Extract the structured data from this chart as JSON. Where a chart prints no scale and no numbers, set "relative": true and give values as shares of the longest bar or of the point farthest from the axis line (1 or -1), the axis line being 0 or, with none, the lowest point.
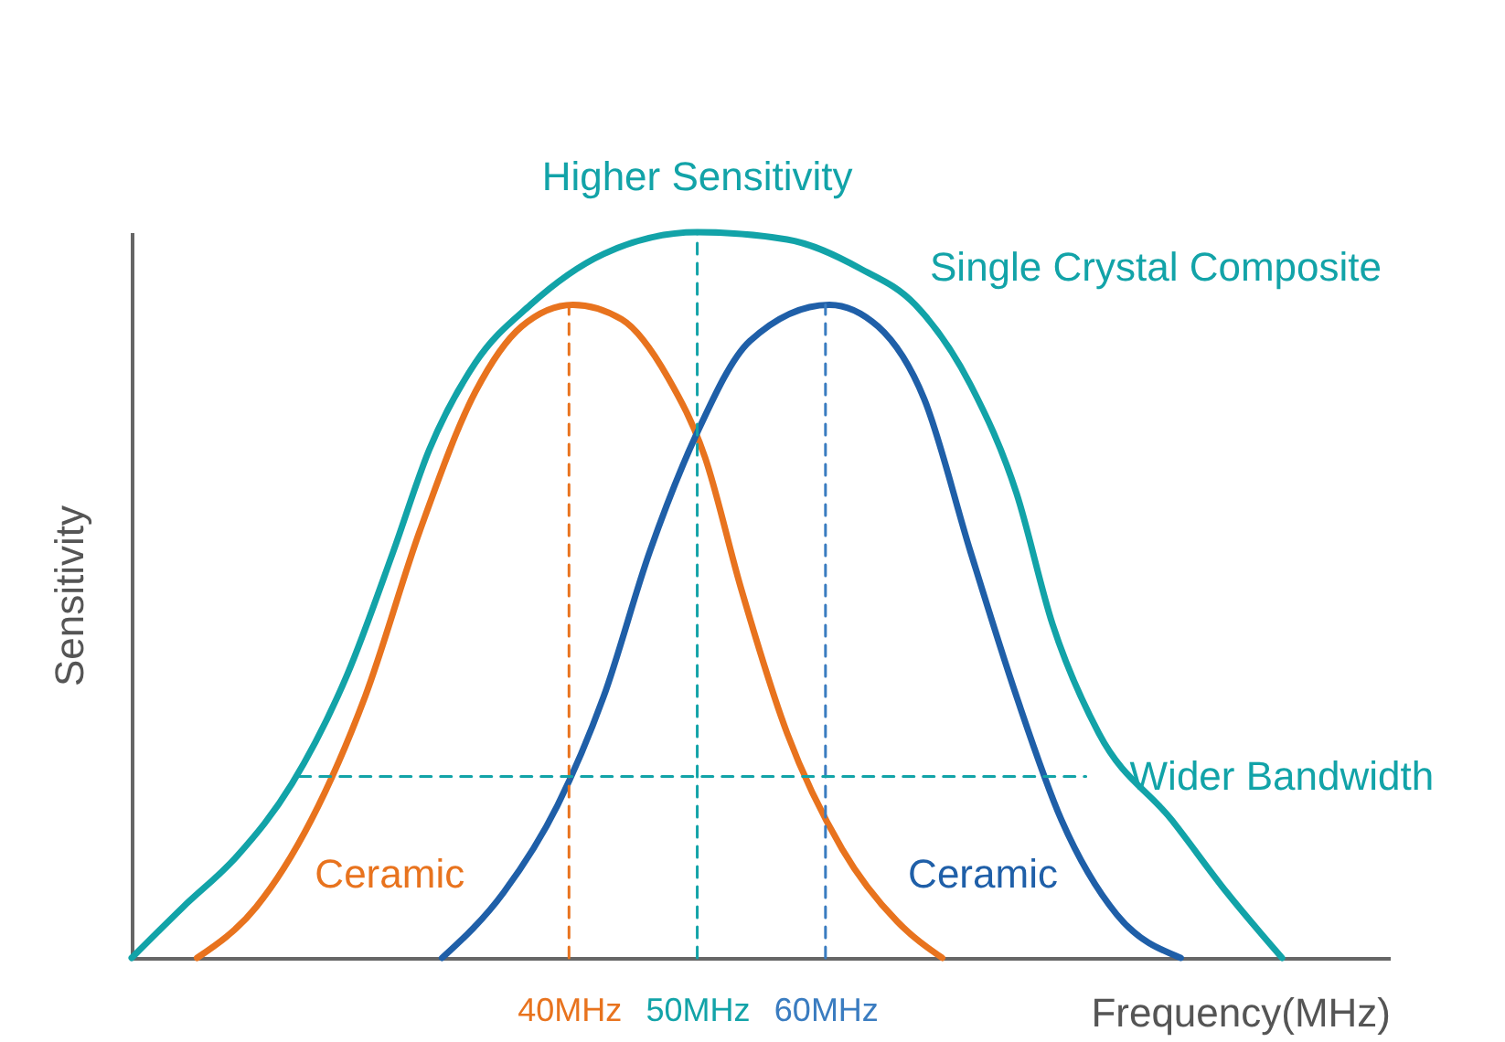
{
  "chart_data": {
    "type": "line",
    "relative": true,
    "xlabel": "Frequency(MHz)",
    "ylabel": "Sensitivity",
    "xlim": [
      5.9,
      104
    ],
    "xticks": [
      {
        "value": 40,
        "label": "40MHz"
      },
      {
        "value": 50,
        "label": "50MHz"
      },
      {
        "value": 60,
        "label": "60MHz"
      }
    ],
    "series": [
      {
        "name": "Single Crystal Composite",
        "color": "#12a3a8",
        "x": [
          5.9,
          9.9,
          14.1,
          18.4,
          22.7,
          26.3,
          29.1,
          32.7,
          37,
          42.7,
          50,
          57,
          62.7,
          67,
          71.3,
          74.9,
          77.7,
          81.3,
          87,
          91.3,
          95.6
        ],
        "values": [
          0,
          0.07,
          0.14,
          0.24,
          0.39,
          0.56,
          0.7,
          0.82,
          0.9,
          0.97,
          1,
          0.99,
          0.95,
          0.9,
          0.79,
          0.64,
          0.46,
          0.31,
          0.19,
          0.09,
          0
        ]
      },
      {
        "name": "Ceramic",
        "color": "#e8731e",
        "x": [
          11,
          15.6,
          19.9,
          24.1,
          28.4,
          32.7,
          36.3,
          40.3,
          44.1,
          47.7,
          50.6,
          53.4,
          57,
          61.3,
          65.6,
          69.1
        ],
        "values": [
          0,
          0.07,
          0.19,
          0.36,
          0.59,
          0.78,
          0.87,
          0.9,
          0.88,
          0.8,
          0.69,
          0.51,
          0.31,
          0.15,
          0.05,
          0
        ]
      },
      {
        "name": "Ceramic",
        "color": "#1f5fa8",
        "x": [
          30.1,
          34.9,
          39.1,
          42.7,
          46.3,
          49.9,
          54.1,
          60.3,
          64.1,
          67.7,
          71.3,
          74.9,
          78.4,
          82.7,
          87.7
        ],
        "values": [
          0,
          0.09,
          0.21,
          0.36,
          0.56,
          0.72,
          0.85,
          0.9,
          0.87,
          0.77,
          0.56,
          0.36,
          0.19,
          0.06,
          0
        ]
      },
      {
        "type": "line",
        "line_style": "dashed",
        "color": "#e8731e",
        "x": [
          40,
          40
        ],
        "values": [
          0,
          0.9
        ]
      },
      {
        "type": "line",
        "line_style": "dashed",
        "color": "#12a3a8",
        "x": [
          50,
          50
        ],
        "values": [
          0,
          1
        ]
      },
      {
        "type": "line",
        "line_style": "dashed",
        "color": "#3a7cc0",
        "x": [
          60,
          60
        ],
        "values": [
          0,
          0.9
        ]
      },
      {
        "type": "line",
        "line_style": "dashed",
        "color": "#12a3a8",
        "x": [
          19,
          80.3
        ],
        "values": [
          0.25,
          0.25
        ]
      }
    ],
    "annotations": [
      {
        "text": "Higher Sensitivity",
        "x": 50,
        "y": 1
      },
      {
        "text": "Wider Bandwidth",
        "x": 80.3,
        "y": 0.25
      }
    ]
  }
}
